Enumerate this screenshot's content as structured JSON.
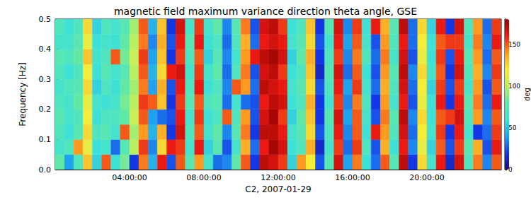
{
  "chart_data": {
    "type": "heatmap",
    "title": "magnetic field maximum variance direction theta angle, GSE",
    "x_label": "C2, 2007-01-29",
    "y_label": "Frequency [Hz]",
    "xlim": [
      0,
      24
    ],
    "xticks": [
      {
        "value": 4,
        "label": "04:00:00"
      },
      {
        "value": 8,
        "label": "08:00:00"
      },
      {
        "value": 12,
        "label": "12:00:00"
      },
      {
        "value": 16,
        "label": "16:00:00"
      },
      {
        "value": 20,
        "label": "20:00:00"
      }
    ],
    "ylim": [
      0,
      0.5
    ],
    "yticks": [
      {
        "value": 0,
        "label": "0.0"
      },
      {
        "value": 0.1,
        "label": "0.1"
      },
      {
        "value": 0.2,
        "label": "0.2"
      },
      {
        "value": 0.3,
        "label": "0.3"
      },
      {
        "value": 0.4,
        "label": "0.4"
      },
      {
        "value": 0.5,
        "label": "0.5"
      }
    ],
    "time_bins": [
      0,
      0.5,
      1,
      1.5,
      2,
      2.5,
      3,
      3.5,
      4,
      4.5,
      5,
      5.5,
      6,
      6.5,
      7,
      7.5,
      8,
      8.5,
      9,
      9.5,
      10,
      10.5,
      11,
      11.5,
      12,
      12.5,
      13,
      13.5,
      14,
      14.5,
      15,
      15.5,
      16,
      16.5,
      17,
      17.5,
      18,
      18.5,
      19,
      19.5,
      20,
      20.5,
      21,
      21.5,
      22,
      22.5,
      23,
      23.5,
      24
    ],
    "frequency_bins": [
      0,
      0.05,
      0.1,
      0.15,
      0.2,
      0.25,
      0.3,
      0.35,
      0.4,
      0.45,
      0.5
    ],
    "cells": [
      [
        80,
        40,
        70,
        130,
        55,
        150,
        60,
        85,
        20,
        145,
        45,
        160,
        25,
        150,
        75,
        140,
        65,
        30,
        35,
        80,
        150,
        20,
        170,
        165,
        155,
        55,
        140,
        120,
        25,
        75,
        165,
        40,
        145,
        60,
        30,
        150,
        75,
        170,
        20,
        125,
        65,
        160,
        15,
        165,
        70,
        145,
        35,
        150
      ],
      [
        65,
        70,
        140,
        115,
        60,
        65,
        30,
        75,
        100,
        155,
        35,
        125,
        160,
        155,
        65,
        160,
        55,
        75,
        25,
        65,
        135,
        30,
        160,
        175,
        165,
        60,
        70,
        135,
        15,
        65,
        155,
        30,
        155,
        70,
        25,
        135,
        60,
        160,
        35,
        115,
        55,
        150,
        25,
        155,
        75,
        135,
        25,
        160
      ],
      [
        70,
        60,
        75,
        125,
        70,
        75,
        65,
        150,
        95,
        140,
        45,
        135,
        20,
        165,
        70,
        150,
        65,
        80,
        35,
        75,
        145,
        20,
        170,
        170,
        160,
        65,
        75,
        125,
        25,
        70,
        160,
        35,
        150,
        60,
        160,
        140,
        70,
        165,
        30,
        120,
        65,
        155,
        20,
        160,
        65,
        20,
        30,
        155
      ],
      [
        75,
        65,
        70,
        120,
        60,
        70,
        70,
        80,
        105,
        150,
        40,
        30,
        25,
        160,
        65,
        155,
        60,
        70,
        150,
        70,
        140,
        25,
        165,
        175,
        155,
        55,
        80,
        130,
        20,
        75,
        165,
        40,
        150,
        65,
        25,
        145,
        75,
        170,
        35,
        125,
        60,
        150,
        155,
        165,
        70,
        140,
        35,
        150
      ],
      [
        70,
        65,
        80,
        115,
        65,
        60,
        65,
        85,
        100,
        155,
        150,
        130,
        20,
        155,
        75,
        150,
        70,
        75,
        30,
        65,
        30,
        25,
        160,
        170,
        165,
        60,
        70,
        135,
        20,
        65,
        155,
        35,
        145,
        70,
        20,
        140,
        65,
        160,
        25,
        115,
        60,
        160,
        20,
        160,
        75,
        145,
        30,
        160
      ],
      [
        65,
        70,
        75,
        125,
        55,
        70,
        60,
        80,
        95,
        145,
        40,
        135,
        25,
        160,
        70,
        160,
        60,
        70,
        35,
        150,
        140,
        30,
        170,
        165,
        160,
        65,
        75,
        125,
        25,
        70,
        160,
        40,
        155,
        65,
        30,
        135,
        70,
        165,
        30,
        120,
        55,
        155,
        25,
        155,
        65,
        140,
        25,
        150
      ],
      [
        70,
        60,
        70,
        120,
        60,
        75,
        65,
        75,
        100,
        150,
        45,
        125,
        160,
        165,
        65,
        155,
        65,
        80,
        30,
        70,
        145,
        25,
        165,
        170,
        155,
        60,
        70,
        130,
        15,
        75,
        165,
        30,
        150,
        60,
        25,
        140,
        75,
        170,
        35,
        125,
        65,
        150,
        20,
        165,
        70,
        135,
        35,
        155
      ],
      [
        75,
        70,
        80,
        130,
        65,
        70,
        150,
        85,
        105,
        155,
        40,
        130,
        20,
        155,
        70,
        150,
        55,
        75,
        35,
        65,
        140,
        160,
        170,
        175,
        165,
        55,
        80,
        135,
        20,
        70,
        155,
        35,
        145,
        70,
        30,
        145,
        65,
        165,
        25,
        115,
        60,
        155,
        25,
        160,
        75,
        140,
        30,
        150
      ],
      [
        65,
        65,
        75,
        115,
        60,
        65,
        60,
        80,
        100,
        145,
        35,
        135,
        25,
        160,
        75,
        160,
        60,
        70,
        30,
        70,
        135,
        30,
        160,
        165,
        160,
        65,
        75,
        125,
        25,
        65,
        160,
        40,
        150,
        65,
        25,
        140,
        70,
        160,
        30,
        120,
        60,
        150,
        155,
        155,
        65,
        145,
        35,
        160
      ],
      [
        70,
        60,
        70,
        125,
        55,
        70,
        65,
        75,
        95,
        150,
        45,
        130,
        20,
        165,
        65,
        155,
        65,
        80,
        35,
        75,
        145,
        25,
        165,
        170,
        155,
        60,
        70,
        130,
        20,
        75,
        165,
        35,
        155,
        60,
        160,
        135,
        75,
        170,
        30,
        125,
        55,
        160,
        20,
        165,
        70,
        140,
        30,
        155
      ]
    ],
    "colorbar": {
      "label": "deg",
      "range": [
        0,
        180
      ],
      "ticks": [
        0,
        50,
        100,
        150
      ]
    }
  }
}
